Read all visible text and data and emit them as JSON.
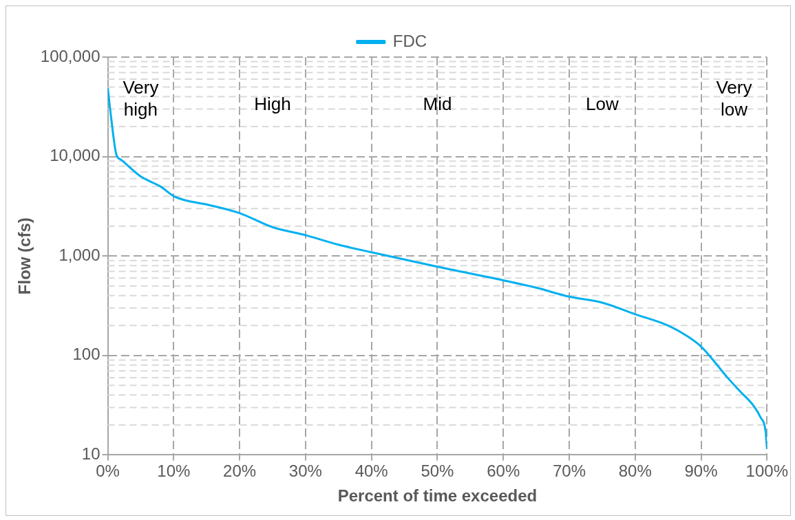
{
  "chart_data": {
    "type": "line",
    "xlabel": "Percent of time exceeded",
    "ylabel": "Flow (cfs)",
    "x": [
      0,
      0.5,
      1.3,
      2,
      5,
      8,
      10,
      12,
      15,
      20,
      25,
      30,
      35,
      40,
      50,
      60,
      65,
      70,
      75,
      80,
      85,
      88,
      90,
      92,
      94,
      96,
      98,
      99,
      99.8,
      100
    ],
    "series": [
      {
        "name": "FDC",
        "color": "#00b0f0",
        "values": [
          49000,
          25000,
          10500,
          9300,
          6300,
          5000,
          4000,
          3600,
          3300,
          2700,
          1950,
          1620,
          1300,
          1090,
          780,
          570,
          480,
          390,
          340,
          260,
          200,
          155,
          123,
          87,
          60,
          43,
          31,
          24,
          17,
          11.5
        ]
      }
    ],
    "xlim": [
      0,
      100
    ],
    "xticks": [
      {
        "value": 0,
        "label": "0%"
      },
      {
        "value": 10,
        "label": "10%"
      },
      {
        "value": 20,
        "label": "20%"
      },
      {
        "value": 30,
        "label": "30%"
      },
      {
        "value": 40,
        "label": "40%"
      },
      {
        "value": 50,
        "label": "50%"
      },
      {
        "value": 60,
        "label": "60%"
      },
      {
        "value": 70,
        "label": "70%"
      },
      {
        "value": 80,
        "label": "80%"
      },
      {
        "value": 90,
        "label": "90%"
      },
      {
        "value": 100,
        "label": "100%"
      }
    ],
    "ylim": [
      10,
      100000
    ],
    "yticks": [
      10,
      100,
      {
        "value": 1000,
        "label": "1,000"
      },
      {
        "value": 10000,
        "label": "10,000"
      },
      {
        "value": 100000,
        "label": "100,000"
      }
    ],
    "log": "y",
    "grid": true,
    "legend": "top",
    "marker": "none",
    "line_style": "solid",
    "annotations": [
      "Very high",
      "High",
      "Mid",
      "Low",
      "Very low"
    ]
  }
}
